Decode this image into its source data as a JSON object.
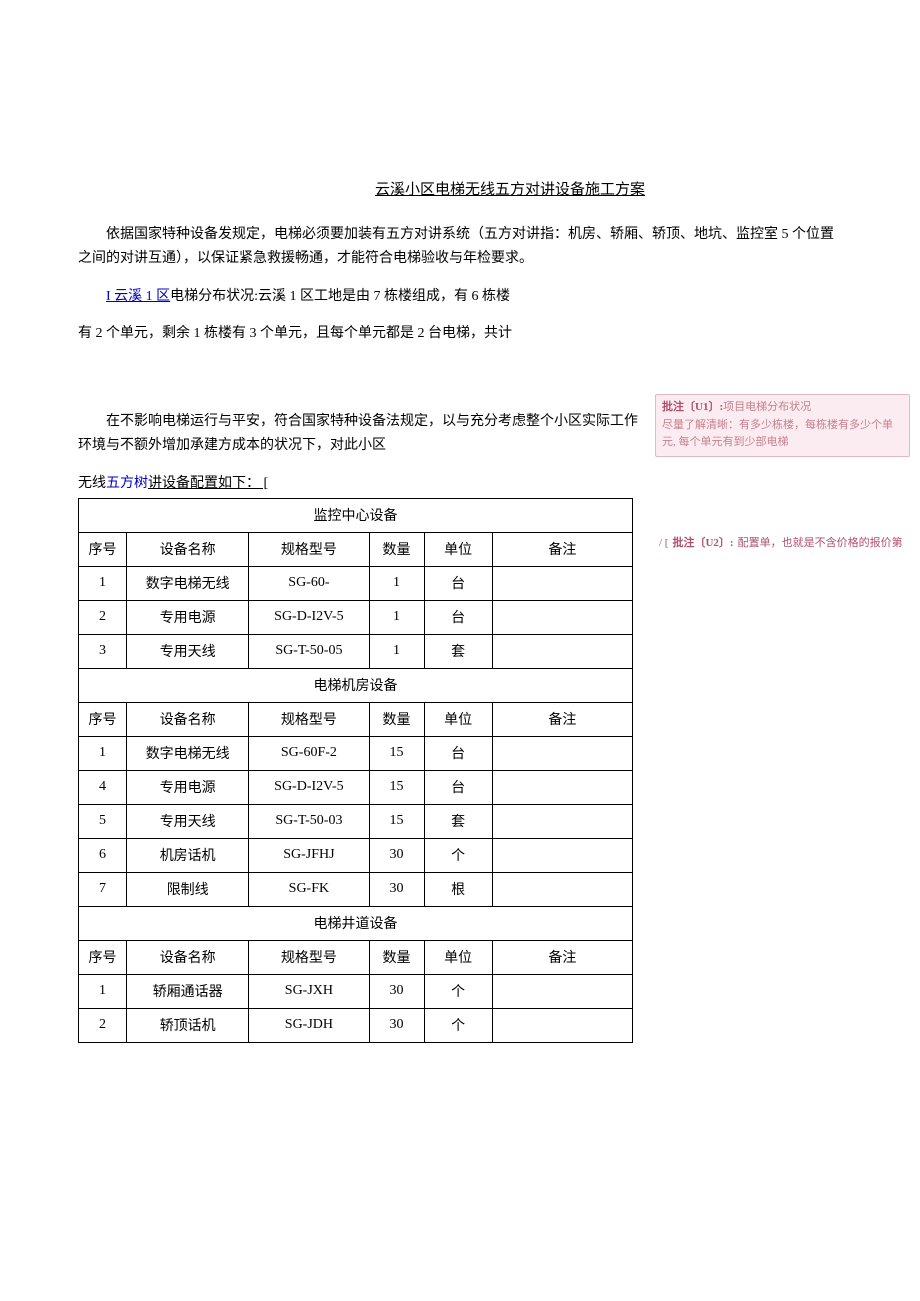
{
  "doc": {
    "title": "云溪小区电梯无线五方对讲设备施工方案",
    "para1": "依据国家特种设备发规定，电梯必须要加装有五方对讲系统（五方对讲指：机房、轿厢、轿顶、地坑、监控室 5 个位置之间的对讲互通），以保证紧急救援畅通，才能符合电梯验收与年检要求。",
    "para2_prefix": "I 云溪 1 区",
    "para2_rest": "电梯分布状况:云溪 1 区工地是由 7 栋楼组成，有 6 栋楼",
    "para3": "有 2 个单元，剩余 1 栋楼有 3 个单元，且每个单元都是 2 台电梯，共计",
    "para4": "在不影响电梯运行与平安，符合国家特种设备法规定，以与充分考虑整个小区实际工作环境与不额外增加承建方成本的状况下，对此小区",
    "config_line_prefix": "无线",
    "config_line_word": "五方树",
    "config_line_suffix": "讲设备配置如下：  [",
    "comments": {
      "u1": {
        "label": "批注〔U1〕:",
        "title": "项目电梯分布状况",
        "body": "尽量了解清晰：有多少栋楼，每栋楼有多少个单元, 每个单元有到少部电梯"
      },
      "u2": {
        "prefix": "/ [",
        "label": "批注〔U2〕:",
        "body": "配置单，也就是不含价格的报价第"
      }
    }
  },
  "table": {
    "headers": {
      "seq": "序号",
      "name": "设备名称",
      "model": "规格型号",
      "qty": "数量",
      "unit": "单位",
      "note": "备注"
    },
    "sections": [
      {
        "title": "监控中心设备",
        "rows": [
          {
            "seq": "1",
            "name": "数字电梯无线",
            "model": "SG-60-",
            "qty": "1",
            "unit": "台",
            "note": ""
          },
          {
            "seq": "2",
            "name": "专用电源",
            "model": "SG-D-I2V-5",
            "qty": "1",
            "unit": "台",
            "note": ""
          },
          {
            "seq": "3",
            "name": "专用天线",
            "model": "SG-T-50-05",
            "qty": "1",
            "unit": "套",
            "note": ""
          }
        ]
      },
      {
        "title": "电梯机房设备",
        "rows": [
          {
            "seq": "1",
            "name": "数字电梯无线",
            "model": "SG-60F-2",
            "qty": "15",
            "unit": "台",
            "note": ""
          },
          {
            "seq": "4",
            "name": "专用电源",
            "model": "SG-D-I2V-5",
            "qty": "15",
            "unit": "台",
            "note": ""
          },
          {
            "seq": "5",
            "name": "专用天线",
            "model": "SG-T-50-03",
            "qty": "15",
            "unit": "套",
            "note": ""
          },
          {
            "seq": "6",
            "name": "机房话机",
            "model": "SG-JFHJ",
            "qty": "30",
            "unit": "个",
            "note": ""
          },
          {
            "seq": "7",
            "name": "限制线",
            "model": "SG-FK",
            "qty": "30",
            "unit": "根",
            "note": ""
          }
        ]
      },
      {
        "title": "电梯井道设备",
        "rows": [
          {
            "seq": "1",
            "name": "轿厢通话器",
            "model": "SG-JXH",
            "qty": "30",
            "unit": "个",
            "note": ""
          },
          {
            "seq": "2",
            "name": "轿顶话机",
            "model": "SG-JDH",
            "qty": "30",
            "unit": "个",
            "note": ""
          }
        ]
      }
    ]
  },
  "style": {
    "link_color": "#0000cc",
    "comment_bg": "#faecf0",
    "comment_border": "#e3b8c4",
    "comment_text": "#c88090"
  }
}
